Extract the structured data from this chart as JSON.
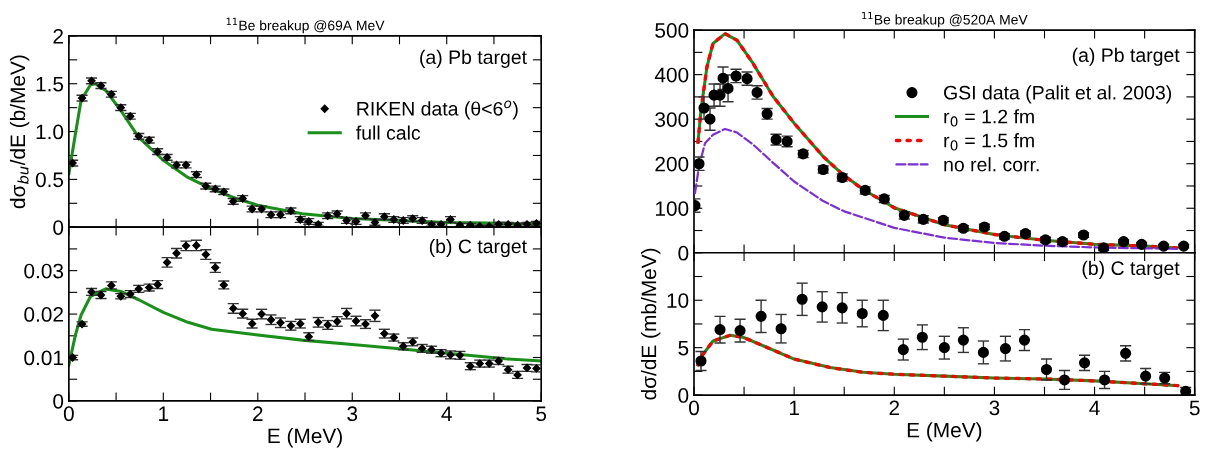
{
  "chart_data": [
    {
      "type": "line",
      "title": "$^{11}$Be breakup @69A MeV",
      "ylabel": "dσ$_{bu}$/dE (b/MeV)",
      "annotations": [
        "(a) Pb target"
      ],
      "legend": "right",
      "tick_labels": "y",
      "grid": false,
      "xlim": [
        0,
        5
      ],
      "xticks": [
        {
          "value": 0,
          "label": null
        },
        {
          "value": 0.5,
          "label": null
        },
        {
          "value": 1,
          "label": null
        },
        {
          "value": 1.5,
          "label": null
        },
        {
          "value": 2,
          "label": null
        },
        {
          "value": 2.5,
          "label": null
        },
        {
          "value": 3,
          "label": null
        },
        {
          "value": 3.5,
          "label": null
        },
        {
          "value": 4,
          "label": null
        },
        {
          "value": 4.5,
          "label": null
        },
        {
          "value": 5,
          "label": null
        }
      ],
      "ylim": [
        0,
        2
      ],
      "yticks": [
        0,
        {
          "value": 0.25,
          "label": null
        },
        {
          "value": 0.5,
          "label": "0.5"
        },
        {
          "value": 0.75,
          "label": null
        },
        {
          "value": 1,
          "label": "1.0"
        },
        {
          "value": 1.25,
          "label": null
        },
        {
          "value": 1.5,
          "label": "1.5"
        },
        {
          "value": 1.75,
          "label": null
        },
        2
      ],
      "series": [
        {
          "name": "RIKEN data (θ<6$^{o}$)",
          "type": "scatter",
          "marker": "diamond",
          "color": "#000000",
          "x": [
            0.04,
            0.14,
            0.24,
            0.34,
            0.45,
            0.55,
            0.65,
            0.74,
            0.85,
            0.94,
            1.04,
            1.14,
            1.24,
            1.35,
            1.45,
            1.55,
            1.64,
            1.74,
            1.84,
            1.94,
            2.04,
            2.14,
            2.24,
            2.35,
            2.45,
            2.54,
            2.64,
            2.74,
            2.84,
            2.94,
            3.04,
            3.14,
            3.24,
            3.34,
            3.44,
            3.54,
            3.64,
            3.74,
            3.84,
            3.94,
            4.04,
            4.14,
            4.25,
            4.35,
            4.45,
            4.55,
            4.65,
            4.75,
            4.85,
            4.95
          ],
          "values": [
            0.67,
            1.35,
            1.53,
            1.48,
            1.39,
            1.25,
            1.16,
            0.95,
            0.91,
            0.79,
            0.73,
            0.65,
            0.65,
            0.55,
            0.43,
            0.4,
            0.37,
            0.27,
            0.3,
            0.19,
            0.19,
            0.13,
            0.13,
            0.17,
            0.08,
            0.06,
            0.03,
            0.12,
            0.14,
            0.07,
            0.06,
            0.12,
            0.05,
            0.11,
            0.08,
            0.07,
            0.09,
            0.07,
            0.03,
            0.03,
            0.08,
            0.02,
            0.02,
            0.01,
            0.01,
            0.03,
            0.03,
            0.02,
            0.03,
            0.04
          ],
          "errors": [
            0.03,
            0.03,
            0.03,
            0.03,
            0.03,
            0.03,
            0.03,
            0.03,
            0.03,
            0.03,
            0.03,
            0.03,
            0.03,
            0.03,
            0.03,
            0.03,
            0.03,
            0.03,
            0.03,
            0.03,
            0.03,
            0.03,
            0.03,
            0.03,
            0.03,
            0.03,
            0.02,
            0.03,
            0.03,
            0.03,
            0.03,
            0.03,
            0.03,
            0.03,
            0.03,
            0.03,
            0.03,
            0.03,
            0.02,
            0.02,
            0.03,
            0.02,
            0.02,
            0.01,
            0.01,
            0.02,
            0.02,
            0.02,
            0.02,
            0.02
          ]
        },
        {
          "name": "full calc",
          "color": "#1a8f1a",
          "line_style": "solid",
          "x": [
            0.0,
            0.07,
            0.13,
            0.23,
            0.28,
            0.39,
            0.55,
            0.74,
            1.0,
            1.26,
            1.51,
            1.77,
            2.0,
            2.47,
            3.0,
            4.0,
            4.62,
            5.0
          ],
          "values": [
            0.56,
            0.98,
            1.33,
            1.49,
            1.5,
            1.43,
            1.22,
            0.94,
            0.7,
            0.52,
            0.4,
            0.3,
            0.23,
            0.14,
            0.09,
            0.05,
            0.04,
            0.03
          ]
        }
      ]
    },
    {
      "type": "line",
      "xlabel": "E (MeV)",
      "annotations": [
        "(b) C target"
      ],
      "grid": false,
      "xlim": [
        0,
        5
      ],
      "xticks": [
        0,
        {
          "value": 0.5,
          "label": null
        },
        1,
        {
          "value": 1.5,
          "label": null
        },
        2,
        {
          "value": 2.5,
          "label": null
        },
        3,
        {
          "value": 3.5,
          "label": null
        },
        4,
        {
          "value": 4.5,
          "label": null
        },
        5
      ],
      "ylim": [
        0,
        0.04
      ],
      "yticks": [
        0,
        {
          "value": 0.005,
          "label": null
        },
        0.01,
        {
          "value": 0.015,
          "label": null
        },
        0.02,
        {
          "value": 0.025,
          "label": null
        },
        0.03,
        {
          "value": 0.035,
          "label": null
        },
        {
          "value": 0.04,
          "label": null
        }
      ],
      "series": [
        {
          "type": "scatter",
          "marker": "diamond",
          "color": "#000000",
          "x": [
            0.04,
            0.14,
            0.24,
            0.34,
            0.45,
            0.55,
            0.65,
            0.74,
            0.85,
            0.94,
            1.04,
            1.14,
            1.24,
            1.35,
            1.45,
            1.55,
            1.64,
            1.74,
            1.84,
            1.94,
            2.04,
            2.14,
            2.24,
            2.35,
            2.45,
            2.54,
            2.64,
            2.74,
            2.84,
            2.94,
            3.04,
            3.14,
            3.24,
            3.34,
            3.44,
            3.54,
            3.64,
            3.74,
            3.84,
            3.94,
            4.04,
            4.14,
            4.25,
            4.35,
            4.45,
            4.55,
            4.65,
            4.75,
            4.85,
            4.95
          ],
          "values": [
            0.01,
            0.0177,
            0.0251,
            0.0244,
            0.0266,
            0.0241,
            0.0246,
            0.0258,
            0.0261,
            0.0268,
            0.0319,
            0.034,
            0.0357,
            0.0358,
            0.0337,
            0.0307,
            0.0267,
            0.0213,
            0.0201,
            0.0178,
            0.02,
            0.0187,
            0.018,
            0.0173,
            0.0178,
            0.0148,
            0.0181,
            0.0175,
            0.0183,
            0.0201,
            0.0184,
            0.0177,
            0.0196,
            0.0155,
            0.0146,
            0.0126,
            0.0136,
            0.0121,
            0.0118,
            0.011,
            0.0106,
            0.0105,
            0.008,
            0.0086,
            0.0086,
            0.0092,
            0.0072,
            0.006,
            0.0076,
            0.0075
          ],
          "errors": [
            0.0005,
            0.0005,
            0.0008,
            0.0008,
            0.0008,
            0.0006,
            0.0008,
            0.0008,
            0.0008,
            0.0009,
            0.0011,
            0.0011,
            0.0011,
            0.0012,
            0.0011,
            0.0011,
            0.0009,
            0.0011,
            0.001,
            0.001,
            0.0011,
            0.0011,
            0.0011,
            0.001,
            0.001,
            0.0009,
            0.0011,
            0.001,
            0.0011,
            0.0012,
            0.0011,
            0.001,
            0.0013,
            0.001,
            0.0008,
            0.0008,
            0.0009,
            0.0009,
            0.0008,
            0.0008,
            0.0009,
            0.0009,
            0.0008,
            0.0008,
            0.0008,
            0.0008,
            0.0008,
            0.0008,
            0.0008,
            0.0008
          ]
        },
        {
          "color": "#1a8f1a",
          "line_style": "solid",
          "x": [
            0.0,
            0.07,
            0.13,
            0.23,
            0.39,
            0.55,
            0.74,
            1.0,
            1.26,
            1.51,
            2.0,
            2.47,
            3.0,
            3.5,
            4.0,
            4.62,
            5.0
          ],
          "values": [
            0.0083,
            0.0152,
            0.0198,
            0.0241,
            0.0258,
            0.0252,
            0.0233,
            0.0204,
            0.0181,
            0.0165,
            0.0152,
            0.014,
            0.013,
            0.012,
            0.011,
            0.0097,
            0.0092
          ]
        }
      ]
    },
    {
      "type": "line",
      "title": "$^{11}$Be breakup @520A MeV",
      "annotations": [
        "(a) Pb target"
      ],
      "legend": "right",
      "tick_labels": "y",
      "grid": false,
      "xlim": [
        0,
        5
      ],
      "xticks": [
        {
          "value": 0,
          "label": null
        },
        {
          "value": 0.5,
          "label": null
        },
        {
          "value": 1,
          "label": null
        },
        {
          "value": 1.5,
          "label": null
        },
        {
          "value": 2,
          "label": null
        },
        {
          "value": 2.5,
          "label": null
        },
        {
          "value": 3,
          "label": null
        },
        {
          "value": 3.5,
          "label": null
        },
        {
          "value": 4,
          "label": null
        },
        {
          "value": 4.5,
          "label": null
        },
        {
          "value": 5,
          "label": null
        }
      ],
      "ylim": [
        0,
        500
      ],
      "yticks": [
        0,
        {
          "value": 50,
          "label": null
        },
        100,
        {
          "value": 150,
          "label": null
        },
        200,
        {
          "value": 250,
          "label": null
        },
        300,
        {
          "value": 350,
          "label": null
        },
        400,
        {
          "value": 450,
          "label": null
        },
        500
      ],
      "series": [
        {
          "name": "GSI data (Palit et al. 2003)",
          "type": "scatter",
          "marker": "circle",
          "color": "#000000",
          "x": [
            0.01,
            0.05,
            0.1,
            0.16,
            0.2,
            0.26,
            0.29,
            0.34,
            0.42,
            0.53,
            0.63,
            0.73,
            0.82,
            0.93,
            1.09,
            1.29,
            1.48,
            1.71,
            1.9,
            2.1,
            2.29,
            2.49,
            2.69,
            2.9,
            3.1,
            3.31,
            3.51,
            3.68,
            3.89,
            4.09,
            4.29,
            4.47,
            4.69,
            4.89
          ],
          "values": [
            106,
            200,
            325,
            300,
            354,
            354,
            392,
            369,
            397,
            391,
            360,
            312,
            254,
            250,
            222,
            187,
            169,
            140,
            121,
            84,
            75,
            73,
            55,
            58,
            37,
            43,
            29,
            25,
            40,
            11,
            25,
            19,
            15,
            15
          ],
          "errors": [
            15,
            15,
            25,
            25,
            25,
            25,
            25,
            30,
            15,
            15,
            15,
            12,
            12,
            12,
            8,
            8,
            8,
            8,
            8,
            8,
            8,
            6,
            6,
            6,
            6,
            6,
            6,
            6,
            5,
            6,
            4,
            4,
            4,
            4
          ]
        },
        {
          "name": "r$_{0}$ = 1.2 fm",
          "color": "#1a8f1a",
          "line_style": "solid",
          "x": [
            0.04,
            0.07,
            0.13,
            0.19,
            0.31,
            0.43,
            0.59,
            0.79,
            1.0,
            1.29,
            1.49,
            1.69,
            2.0,
            2.5,
            3.0,
            3.5,
            4.0,
            4.5,
            4.82
          ],
          "values": [
            248,
            321,
            418,
            470,
            492,
            477,
            425,
            351,
            291,
            216,
            175,
            142,
            101,
            63,
            41,
            28,
            19,
            15,
            11
          ]
        },
        {
          "name": "r$_{0}$ = 1.5 fm",
          "color": "#ff0000",
          "line_style": "dotted",
          "x": [
            0.04,
            0.07,
            0.13,
            0.19,
            0.31,
            0.43,
            0.59,
            0.79,
            1.0,
            1.29,
            1.49,
            1.69,
            2.0,
            2.5,
            3.0,
            3.5,
            4.0,
            4.5,
            4.82
          ],
          "values": [
            248,
            321,
            418,
            470,
            492,
            477,
            425,
            351,
            291,
            216,
            175,
            142,
            101,
            63,
            41,
            28,
            19,
            15,
            11
          ]
        },
        {
          "name": "no rel. corr.",
          "color": "#7b2fd6",
          "line_style": "dashed",
          "x": [
            0.01,
            0.05,
            0.11,
            0.19,
            0.31,
            0.43,
            0.59,
            0.79,
            1.0,
            1.29,
            1.5,
            2.0,
            2.5,
            3.0,
            3.5,
            4.0,
            4.5,
            4.82
          ],
          "values": [
            134,
            194,
            246,
            265,
            278,
            270,
            243,
            202,
            160,
            116,
            93,
            56,
            34,
            22,
            16,
            12,
            10,
            9
          ]
        }
      ]
    },
    {
      "type": "line",
      "xlabel": "E (MeV)",
      "ylabel": "dσ/dE (mb/MeV)",
      "annotations": [
        "(b) C target"
      ],
      "grid": false,
      "xlim": [
        0,
        5
      ],
      "xticks": [
        0,
        {
          "value": 0.5,
          "label": null
        },
        1,
        {
          "value": 1.5,
          "label": null
        },
        2,
        {
          "value": 2.5,
          "label": null
        },
        3,
        {
          "value": 3.5,
          "label": null
        },
        4,
        {
          "value": 4.5,
          "label": null
        },
        5
      ],
      "ylim": [
        0,
        15
      ],
      "yticks": [
        0,
        {
          "value": 2.5,
          "label": null
        },
        5,
        {
          "value": 7.5,
          "label": null
        },
        10,
        {
          "value": 12.5,
          "label": null
        },
        {
          "value": 15,
          "label": null
        }
      ],
      "series": [
        {
          "type": "scatter",
          "marker": "circle",
          "color": "#000000",
          "x": [
            0.07,
            0.26,
            0.46,
            0.67,
            0.87,
            1.08,
            1.28,
            1.48,
            1.68,
            1.89,
            2.09,
            2.28,
            2.5,
            2.69,
            2.89,
            3.11,
            3.3,
            3.52,
            3.7,
            3.9,
            4.1,
            4.31,
            4.51,
            4.7,
            4.91
          ],
          "values": [
            3.6,
            6.9,
            6.8,
            8.3,
            7.0,
            10.1,
            9.3,
            9.2,
            8.6,
            8.4,
            4.8,
            6.1,
            5.0,
            5.8,
            4.5,
            4.9,
            5.8,
            2.7,
            1.6,
            3.4,
            1.6,
            4.4,
            2.0,
            1.8,
            0.4
          ],
          "errors": [
            1.0,
            1.4,
            1.2,
            1.7,
            1.5,
            1.7,
            1.6,
            1.6,
            1.4,
            1.6,
            1.1,
            1.3,
            1.2,
            1.3,
            1.2,
            1.3,
            1.1,
            1.1,
            1.0,
            0.8,
            0.9,
            0.8,
            0.8,
            0.6,
            0.4
          ]
        },
        {
          "color": "#1a8f1a",
          "line_style": "solid",
          "x": [
            0.04,
            0.09,
            0.19,
            0.36,
            0.49,
            0.69,
            1.0,
            1.36,
            1.69,
            2.0,
            2.5,
            3.0,
            3.5,
            4.0,
            4.5,
            4.83
          ],
          "values": [
            3.2,
            4.3,
            5.7,
            6.3,
            6.1,
            5.2,
            3.8,
            2.9,
            2.4,
            2.2,
            2.0,
            1.8,
            1.7,
            1.5,
            1.2,
            1.0
          ]
        },
        {
          "color": "#ff0000",
          "line_style": "dotted",
          "x": [
            0.04,
            0.09,
            0.19,
            0.36,
            0.49,
            0.69,
            1.0,
            1.36,
            1.69,
            2.0,
            2.5,
            3.0,
            3.5,
            4.0,
            4.5,
            4.83
          ],
          "values": [
            3.2,
            4.3,
            5.7,
            6.3,
            6.1,
            5.2,
            3.8,
            2.9,
            2.4,
            2.2,
            2.0,
            1.8,
            1.7,
            1.5,
            1.2,
            1.0
          ]
        }
      ]
    }
  ]
}
